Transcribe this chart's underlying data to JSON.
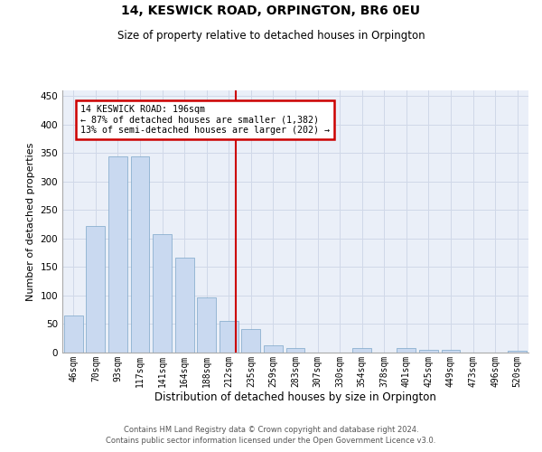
{
  "title": "14, KESWICK ROAD, ORPINGTON, BR6 0EU",
  "subtitle": "Size of property relative to detached houses in Orpington",
  "xlabel": "Distribution of detached houses by size in Orpington",
  "ylabel": "Number of detached properties",
  "categories": [
    "46sqm",
    "70sqm",
    "93sqm",
    "117sqm",
    "141sqm",
    "164sqm",
    "188sqm",
    "212sqm",
    "235sqm",
    "259sqm",
    "283sqm",
    "307sqm",
    "330sqm",
    "354sqm",
    "378sqm",
    "401sqm",
    "425sqm",
    "449sqm",
    "473sqm",
    "496sqm",
    "520sqm"
  ],
  "values": [
    65,
    222,
    345,
    345,
    208,
    167,
    97,
    56,
    42,
    13,
    8,
    0,
    0,
    8,
    0,
    8,
    5,
    4,
    0,
    0,
    3
  ],
  "bar_color": "#c9d9f0",
  "bar_edge_color": "#7ca6c8",
  "property_line_x": 7.3,
  "annotation_line1": "14 KESWICK ROAD: 196sqm",
  "annotation_line2": "← 87% of detached houses are smaller (1,382)",
  "annotation_line3": "13% of semi-detached houses are larger (202) →",
  "annotation_box_color": "#cc0000",
  "grid_color": "#d0d8e8",
  "background_color": "#eaeff8",
  "ylim": [
    0,
    460
  ],
  "yticks": [
    0,
    50,
    100,
    150,
    200,
    250,
    300,
    350,
    400,
    450
  ],
  "footer_line1": "Contains HM Land Registry data © Crown copyright and database right 2024.",
  "footer_line2": "Contains public sector information licensed under the Open Government Licence v3.0."
}
